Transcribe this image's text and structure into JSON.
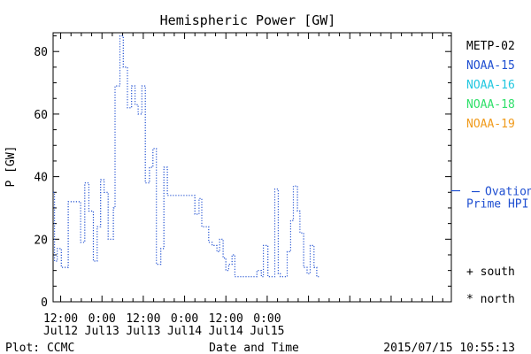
{
  "chart_data": {
    "type": "line",
    "title": "Hemispheric Power [GW]",
    "ylabel": "P [GW]",
    "xlabel": "Date and Time",
    "ylim": [
      0,
      86
    ],
    "yticks": [
      0,
      20,
      40,
      60,
      80
    ],
    "x_hours_range": [
      -2.2,
      113.5
    ],
    "xticks": [
      {
        "hour": 0,
        "line1": "12:00",
        "line2": "Jul12"
      },
      {
        "hour": 12,
        "line1": "0:00",
        "line2": "Jul13"
      },
      {
        "hour": 24,
        "line1": "12:00",
        "line2": "Jul13"
      },
      {
        "hour": 36,
        "line1": "0:00",
        "line2": "Jul14"
      },
      {
        "hour": 48,
        "line1": "12:00",
        "line2": "Jul14"
      },
      {
        "hour": 60,
        "line1": "0:00",
        "line2": "Jul15"
      }
    ],
    "series": [
      {
        "name": "NOAA-15",
        "color": "#1f4fd1",
        "style": "step-dotted",
        "points": [
          [
            -2.2,
            35
          ],
          [
            -1.8,
            13
          ],
          [
            -1.0,
            17
          ],
          [
            0.2,
            11
          ],
          [
            2.2,
            32
          ],
          [
            5.8,
            19
          ],
          [
            7.0,
            38
          ],
          [
            8.2,
            29
          ],
          [
            9.5,
            13
          ],
          [
            10.6,
            24
          ],
          [
            11.6,
            39
          ],
          [
            12.6,
            35
          ],
          [
            13.8,
            20
          ],
          [
            15.3,
            30
          ],
          [
            15.8,
            69
          ],
          [
            17.2,
            85
          ],
          [
            18.2,
            75
          ],
          [
            19.4,
            62
          ],
          [
            20.6,
            69
          ],
          [
            21.6,
            63
          ],
          [
            22.5,
            60
          ],
          [
            23.6,
            69
          ],
          [
            24.6,
            38
          ],
          [
            25.8,
            43
          ],
          [
            26.8,
            49
          ],
          [
            27.8,
            12
          ],
          [
            29.1,
            17
          ],
          [
            30.0,
            43
          ],
          [
            31.0,
            34
          ],
          [
            31.3,
            34
          ],
          [
            39.0,
            28
          ],
          [
            40.2,
            33
          ],
          [
            41.0,
            24
          ],
          [
            43.0,
            19
          ],
          [
            44.0,
            18
          ],
          [
            45.4,
            16
          ],
          [
            46.2,
            20
          ],
          [
            47.2,
            14
          ],
          [
            48.0,
            10
          ],
          [
            48.8,
            12
          ],
          [
            49.8,
            15
          ],
          [
            50.6,
            8
          ],
          [
            55.3,
            8
          ],
          [
            57.0,
            10
          ],
          [
            58.3,
            8
          ],
          [
            58.9,
            18
          ],
          [
            60.2,
            8
          ],
          [
            62.2,
            36
          ],
          [
            63.2,
            9
          ],
          [
            63.8,
            8
          ],
          [
            65.8,
            16
          ],
          [
            66.8,
            26
          ],
          [
            67.6,
            37
          ],
          [
            68.8,
            29
          ],
          [
            69.5,
            22
          ],
          [
            70.6,
            11
          ],
          [
            71.6,
            9
          ],
          [
            72.5,
            18
          ],
          [
            73.6,
            11
          ],
          [
            74.4,
            8
          ],
          [
            75.0,
            8
          ]
        ]
      }
    ],
    "legend": [
      "METP-02",
      "NOAA-15",
      "NOAA-16",
      "NOAA-18",
      "NOAA-19"
    ],
    "legend_colors": [
      "#000000",
      "#1f4fd1",
      "#22c8e0",
      "#2ee06a",
      "#f09a1a"
    ],
    "ovation": {
      "value": 35.5,
      "label_line1": "Ovation",
      "label_line2": "Prime HPI",
      "color": "#1f4fd1"
    },
    "markers_legend": [
      "+ south",
      "* north"
    ],
    "footer_left": "Plot: CCMC",
    "footer_right": "2015/07/15 10:55:13"
  },
  "colors": {
    "axis": "#000000",
    "line": "#1f4fd1"
  }
}
